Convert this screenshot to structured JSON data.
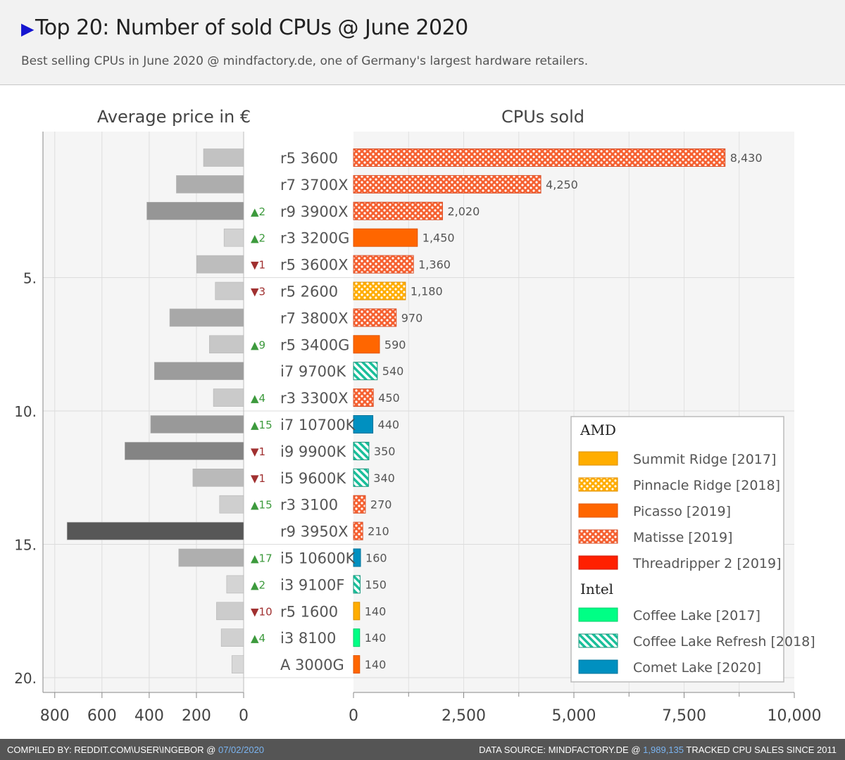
{
  "header": {
    "title": "Top 20: Number of sold CPUs  @ June 2020",
    "subtitle": "Best selling CPUs in June 2020 @ mindfactory.de, one of Germany's largest hardware retailers."
  },
  "footer": {
    "left_prefix": "COMPILED BY: REDDIT.COM\\USER\\INGEBOR @ ",
    "date": "07/02/2020",
    "right_prefix": "DATA SOURCE: MINDFACTORY.DE @ ",
    "total": "1,989,135",
    "right_suffix": " TRACKED CPU SALES SINCE 2011"
  },
  "chart_data": {
    "type": "bar",
    "left_panel": {
      "title": "Average price in €",
      "xlim": [
        850,
        0
      ],
      "ticks": [
        "800",
        "600",
        "400",
        "200",
        "0"
      ],
      "tick_values": [
        800,
        600,
        400,
        200,
        0
      ]
    },
    "right_panel": {
      "title": "CPUs sold",
      "xlim": [
        0,
        10000
      ],
      "ticks": [
        "0",
        "2,500",
        "5,000",
        "7,500",
        "10,000"
      ],
      "tick_values": [
        0,
        2500,
        5000,
        7500,
        10000
      ]
    },
    "rank_ticks": [
      "5.",
      "10.",
      "15.",
      "20."
    ],
    "rank_tick_values": [
      5.5,
      10.5,
      15.5,
      20.5
    ],
    "colors": {
      "summit": "#ffad00",
      "pinnacle": "#ffad00",
      "picasso": "#ff6600",
      "matisse": "#f56030",
      "threadripper": "#ff2000",
      "coffee": "#00ff85",
      "refresh": "#1abf9a",
      "comet": "#0090c0",
      "up": "#3d9a3d",
      "down": "#a03030"
    },
    "legend": {
      "amd_title": "AMD",
      "intel_title": "Intel",
      "amd": [
        {
          "key": "summit",
          "label": "Summit Ridge [2017]"
        },
        {
          "key": "pinnacle",
          "label": "Pinnacle Ridge [2018]"
        },
        {
          "key": "picasso",
          "label": "Picasso [2019]"
        },
        {
          "key": "matisse",
          "label": "Matisse [2019]"
        },
        {
          "key": "threadripper",
          "label": "Threadripper 2 [2019]"
        }
      ],
      "intel": [
        {
          "key": "coffee",
          "label": "Coffee Lake [2017]"
        },
        {
          "key": "refresh",
          "label": "Coffee Lake Refresh [2018]"
        },
        {
          "key": "comet",
          "label": "Comet Lake [2020]"
        }
      ]
    },
    "rows": [
      {
        "rank": 1,
        "name": "r5 3600",
        "sold": 8430,
        "sold_label": "8,430",
        "price": 170,
        "arch": "matisse",
        "change": ""
      },
      {
        "rank": 2,
        "name": "r7 3700X",
        "sold": 4250,
        "sold_label": "4,250",
        "price": 285,
        "arch": "matisse",
        "change": ""
      },
      {
        "rank": 3,
        "name": "r9 3900X",
        "sold": 2020,
        "sold_label": "2,020",
        "price": 410,
        "arch": "matisse",
        "change": "▲2"
      },
      {
        "rank": 4,
        "name": "r3 3200G",
        "sold": 1450,
        "sold_label": "1,450",
        "price": 83,
        "arch": "picasso",
        "change": "▲2"
      },
      {
        "rank": 5,
        "name": "r5 3600X",
        "sold": 1360,
        "sold_label": "1,360",
        "price": 199,
        "arch": "matisse",
        "change": "▼1"
      },
      {
        "rank": 6,
        "name": "r5 2600",
        "sold": 1180,
        "sold_label": "1,180",
        "price": 120,
        "arch": "pinnacle",
        "change": "▼3"
      },
      {
        "rank": 7,
        "name": "r7 3800X",
        "sold": 970,
        "sold_label": "970",
        "price": 313,
        "arch": "matisse",
        "change": ""
      },
      {
        "rank": 8,
        "name": "r5 3400G",
        "sold": 590,
        "sold_label": "590",
        "price": 145,
        "arch": "picasso",
        "change": "▲9"
      },
      {
        "rank": 9,
        "name": "i7 9700K",
        "sold": 540,
        "sold_label": "540",
        "price": 378,
        "arch": "refresh",
        "change": ""
      },
      {
        "rank": 10,
        "name": "r3 3300X",
        "sold": 450,
        "sold_label": "450",
        "price": 128,
        "arch": "matisse",
        "change": "▲4"
      },
      {
        "rank": 11,
        "name": "i7 10700K",
        "sold": 440,
        "sold_label": "440",
        "price": 394,
        "arch": "comet",
        "change": "▲15"
      },
      {
        "rank": 12,
        "name": "i9 9900K",
        "sold": 350,
        "sold_label": "350",
        "price": 503,
        "arch": "refresh",
        "change": "▼1"
      },
      {
        "rank": 13,
        "name": "i5 9600K",
        "sold": 340,
        "sold_label": "340",
        "price": 215,
        "arch": "refresh",
        "change": "▼1"
      },
      {
        "rank": 14,
        "name": "r3 3100",
        "sold": 270,
        "sold_label": "270",
        "price": 102,
        "arch": "matisse",
        "change": "▲15"
      },
      {
        "rank": 15,
        "name": "r9 3950X",
        "sold": 210,
        "sold_label": "210",
        "price": 748,
        "arch": "matisse",
        "change": ""
      },
      {
        "rank": 16,
        "name": "i5 10600K",
        "sold": 160,
        "sold_label": "160",
        "price": 275,
        "arch": "comet",
        "change": "▲17"
      },
      {
        "rank": 17,
        "name": "i3 9100F",
        "sold": 150,
        "sold_label": "150",
        "price": 72,
        "arch": "refresh",
        "change": "▲2"
      },
      {
        "rank": 18,
        "name": "r5 1600",
        "sold": 140,
        "sold_label": "140",
        "price": 115,
        "arch": "summit",
        "change": "▼10"
      },
      {
        "rank": 19,
        "name": "i3 8100",
        "sold": 140,
        "sold_label": "140",
        "price": 95,
        "arch": "coffee",
        "change": "▲4"
      },
      {
        "rank": 20,
        "name": "A 3000G",
        "sold": 140,
        "sold_label": "140",
        "price": 50,
        "arch": "picasso",
        "change": ""
      }
    ]
  }
}
